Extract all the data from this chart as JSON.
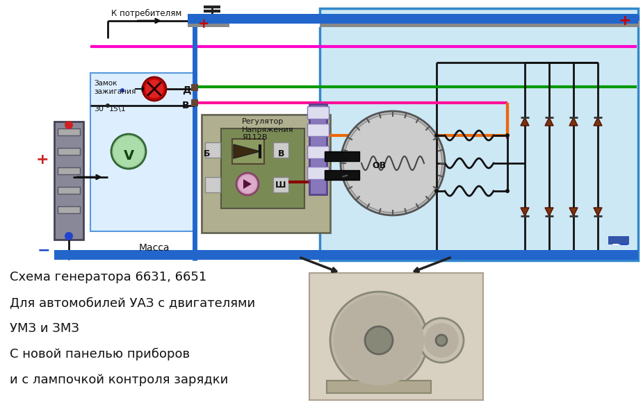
{
  "bg_color": "#ffffff",
  "diagram_bg": "#cce8f4",
  "title_lines": [
    "Схема генератора 6631, 6651",
    "Для автомобилей УАЗ с двигателями",
    "УМЗ и ЗМЗ",
    "С новой панелью приборов",
    "и с лампочкой контроля зарядки"
  ],
  "label_k_potrebitelyam": "К потребителям",
  "label_massa": "Масса",
  "label_zamok": "Замок\nзажигания",
  "label_d": "Д",
  "label_b_lower": "В",
  "label_regulator": "Регулятор\nНапряжения\nЯ112В",
  "label_b2": "Б",
  "label_v2": "В",
  "label_sh": "Ш",
  "label_ov": "ОВ",
  "label_30": "30",
  "label_15_1": "15\\1",
  "label_plus_red": "+",
  "label_minus_blue": "−"
}
